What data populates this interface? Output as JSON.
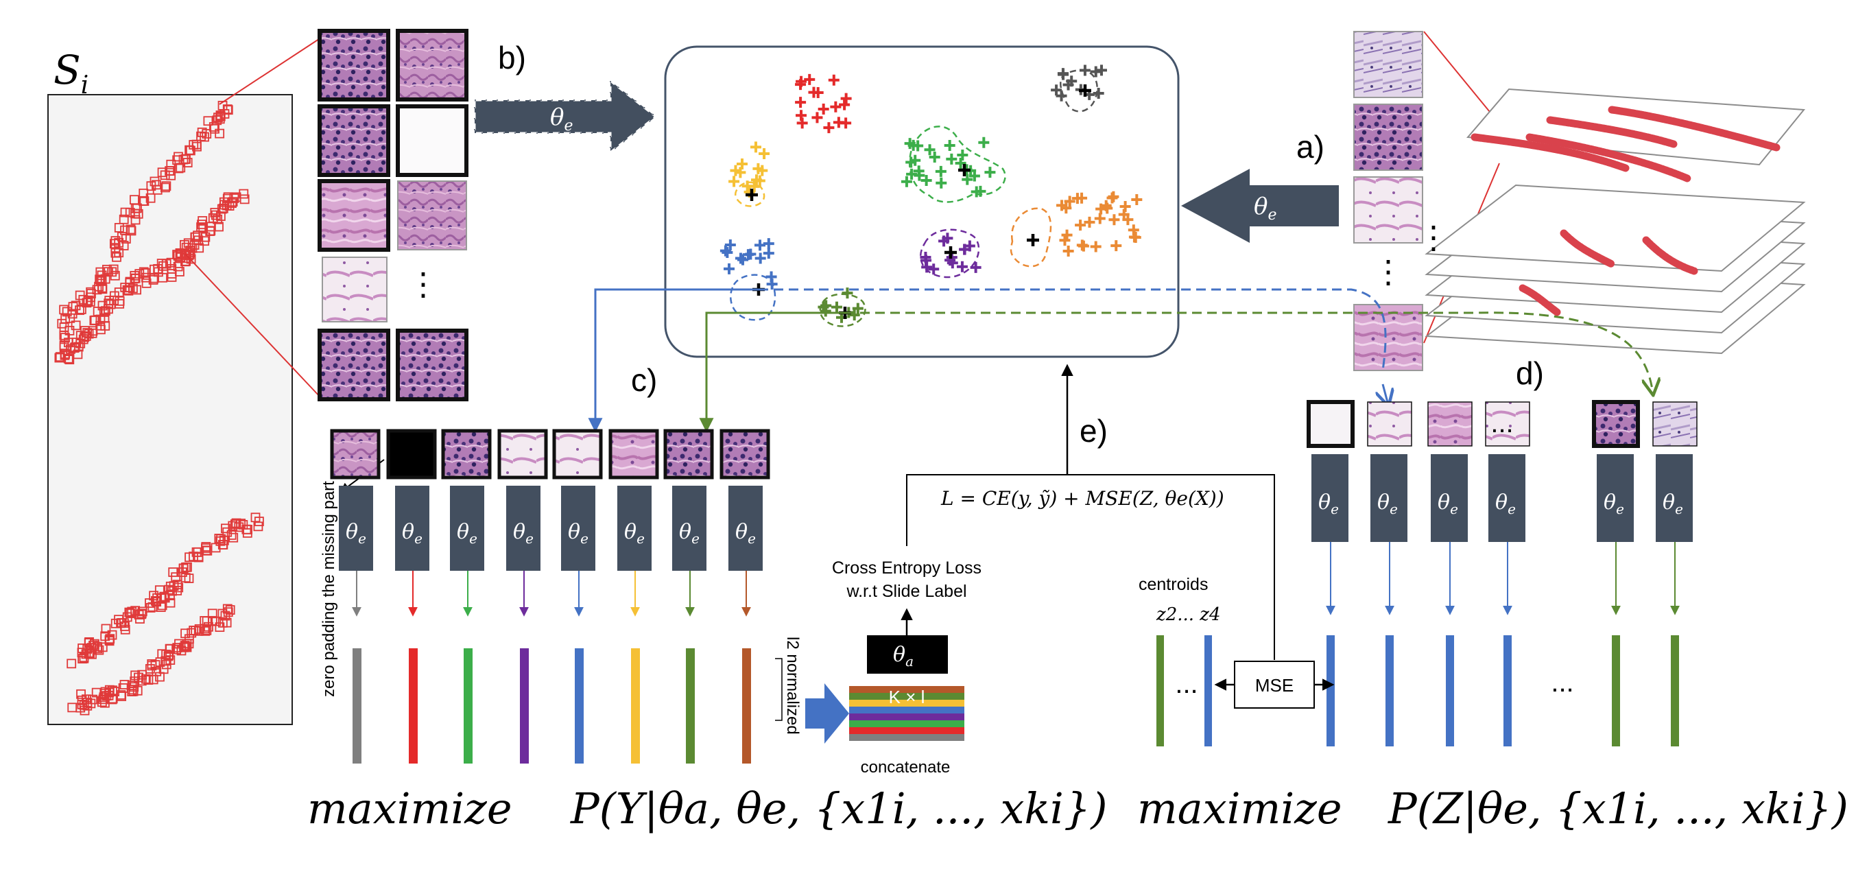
{
  "labels": {
    "slide": "S",
    "slide_sub": "i",
    "a": "a)",
    "b": "b)",
    "c": "c)",
    "d": "d)",
    "e": "e)"
  },
  "encoder": {
    "name": "θ",
    "sub": "e"
  },
  "aggregator": {
    "name": "θ",
    "sub": "a"
  },
  "text": {
    "zero_padding": "zero padding the missing part",
    "l2_normalized": "l2 normalized",
    "concatenate": "concatenate",
    "k_times_l": "K × l",
    "ce_line1": "Cross Entropy Loss",
    "ce_line2": "w.r.t Slide Label",
    "loss": "L = CE(y, ỹ) + MSE(Z, θe(X))",
    "centroids": "centroids",
    "z_labels": "z2... z4",
    "mse": "MSE",
    "dots_h": "...",
    "dots_v": "⋮"
  },
  "formulas": {
    "left_word": "maximize",
    "left_expr": "P(Y|θa, θe, {x1i, ..., xki})",
    "right_word": "maximize",
    "right_expr": "P(Z|θe, {x1i, ..., xki})"
  },
  "colors": {
    "encoder": "#434f5f",
    "patch_border": "#111111",
    "tissue": "#c98bbf",
    "red_patch": "#e03a3a",
    "gray": "#7f7f7f",
    "red": "#e42a2a",
    "green": "#3cae4a",
    "purple": "#6d2c9c",
    "blue": "#4472c4",
    "yellow": "#f5c035",
    "darkgreen": "#5b8a32",
    "orange": "#ea8a34",
    "darkgray": "#555555",
    "brown": "#b4582a"
  },
  "feature_colors": [
    "gray",
    "red",
    "green",
    "purple",
    "blue",
    "yellow",
    "darkgreen",
    "brown"
  ],
  "right_feature_colors": [
    "blue",
    "blue",
    "blue",
    "blue",
    "darkgreen",
    "darkgreen"
  ]
}
